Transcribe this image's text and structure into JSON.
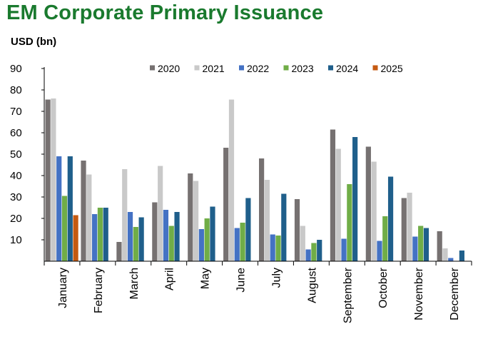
{
  "title": "EM Corporate Primary Issuance",
  "chart_data": {
    "type": "bar",
    "title": "EM Corporate Primary Issuance",
    "ylabel": "USD (bn)",
    "xlabel": "",
    "ylim": [
      0,
      90
    ],
    "yticks": [
      10,
      20,
      30,
      40,
      50,
      60,
      70,
      80,
      90
    ],
    "grid": false,
    "legend_position": "top",
    "categories": [
      "January",
      "February",
      "March",
      "April",
      "May",
      "June",
      "July",
      "August",
      "September",
      "October",
      "November",
      "December"
    ],
    "series": [
      {
        "name": "2020",
        "color": "#767171",
        "values": [
          75.5,
          47,
          9,
          27.5,
          41,
          53,
          48,
          29,
          61.5,
          53.5,
          29.5,
          14
        ]
      },
      {
        "name": "2021",
        "color": "#c9c9c9",
        "values": [
          76,
          40.5,
          43,
          44.5,
          37.5,
          75.5,
          38,
          16.5,
          52.5,
          46.5,
          32,
          6
        ]
      },
      {
        "name": "2022",
        "color": "#4472c4",
        "values": [
          49,
          22,
          23,
          24,
          15,
          15.5,
          12.5,
          5.5,
          10.5,
          9.5,
          11.5,
          1.5
        ]
      },
      {
        "name": "2023",
        "color": "#70ad47",
        "values": [
          30.5,
          25,
          16,
          16.5,
          20,
          18,
          12,
          8.5,
          36,
          21,
          16.5,
          null
        ]
      },
      {
        "name": "2024",
        "color": "#1f5f8b",
        "values": [
          49,
          25,
          20.5,
          23,
          25.5,
          29.5,
          31.5,
          10,
          58,
          39.5,
          15.5,
          5
        ]
      },
      {
        "name": "2025",
        "color": "#c55a11",
        "values": [
          21.5,
          null,
          null,
          null,
          null,
          null,
          null,
          null,
          null,
          null,
          null,
          null
        ]
      }
    ]
  }
}
